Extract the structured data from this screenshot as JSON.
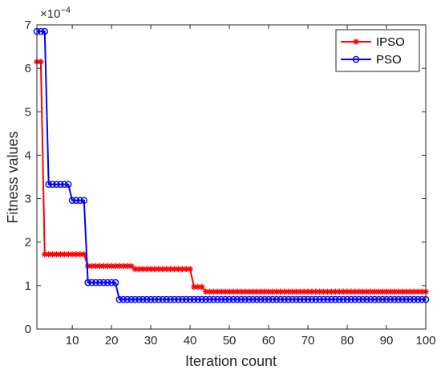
{
  "chart_data": {
    "type": "line",
    "xlabel": "Iteration count",
    "ylabel": "Fitness values",
    "y_exponent_label": "×10",
    "y_exponent_power": "−4",
    "xlim": [
      1,
      100
    ],
    "ylim": [
      0,
      7
    ],
    "x_ticks": [
      10,
      20,
      30,
      40,
      50,
      60,
      70,
      80,
      90,
      100
    ],
    "y_ticks": [
      0,
      1,
      2,
      3,
      4,
      5,
      6,
      7
    ],
    "grid": false,
    "legend_position": "top-right",
    "x": [
      1,
      2,
      3,
      4,
      5,
      6,
      7,
      8,
      9,
      10,
      11,
      12,
      13,
      14,
      15,
      16,
      17,
      18,
      19,
      20,
      21,
      22,
      23,
      24,
      25,
      26,
      27,
      28,
      29,
      30,
      31,
      32,
      33,
      34,
      35,
      36,
      37,
      38,
      39,
      40,
      41,
      42,
      43,
      44,
      45,
      46,
      47,
      48,
      49,
      50,
      51,
      52,
      53,
      54,
      55,
      56,
      57,
      58,
      59,
      60,
      61,
      62,
      63,
      64,
      65,
      66,
      67,
      68,
      69,
      70,
      71,
      72,
      73,
      74,
      75,
      76,
      77,
      78,
      79,
      80,
      81,
      82,
      83,
      84,
      85,
      86,
      87,
      88,
      89,
      90,
      91,
      92,
      93,
      94,
      95,
      96,
      97,
      98,
      99,
      100
    ],
    "series": [
      {
        "name": "IPSO",
        "color": "#ff0000",
        "marker": "star",
        "values": [
          6.15,
          6.15,
          1.72,
          1.72,
          1.72,
          1.72,
          1.72,
          1.72,
          1.72,
          1.72,
          1.72,
          1.72,
          1.72,
          1.45,
          1.45,
          1.45,
          1.45,
          1.45,
          1.45,
          1.45,
          1.45,
          1.45,
          1.45,
          1.45,
          1.45,
          1.38,
          1.38,
          1.38,
          1.38,
          1.38,
          1.38,
          1.38,
          1.38,
          1.38,
          1.38,
          1.38,
          1.38,
          1.38,
          1.38,
          1.38,
          0.97,
          0.97,
          0.97,
          0.86,
          0.86,
          0.86,
          0.86,
          0.86,
          0.86,
          0.86,
          0.86,
          0.86,
          0.86,
          0.86,
          0.86,
          0.86,
          0.86,
          0.86,
          0.86,
          0.86,
          0.86,
          0.86,
          0.86,
          0.86,
          0.86,
          0.86,
          0.86,
          0.86,
          0.86,
          0.86,
          0.86,
          0.86,
          0.86,
          0.86,
          0.86,
          0.86,
          0.86,
          0.86,
          0.86,
          0.86,
          0.86,
          0.86,
          0.86,
          0.86,
          0.86,
          0.86,
          0.86,
          0.86,
          0.86,
          0.86,
          0.86,
          0.86,
          0.86,
          0.86,
          0.86,
          0.86,
          0.86,
          0.86,
          0.86,
          0.86
        ]
      },
      {
        "name": "PSO",
        "color": "#0000ff",
        "marker": "circle",
        "values": [
          6.85,
          6.85,
          6.85,
          3.33,
          3.33,
          3.33,
          3.33,
          3.33,
          3.33,
          2.96,
          2.96,
          2.96,
          2.96,
          1.07,
          1.07,
          1.07,
          1.07,
          1.07,
          1.07,
          1.07,
          1.07,
          0.68,
          0.68,
          0.68,
          0.68,
          0.68,
          0.68,
          0.68,
          0.68,
          0.68,
          0.68,
          0.68,
          0.68,
          0.68,
          0.68,
          0.68,
          0.68,
          0.68,
          0.68,
          0.68,
          0.68,
          0.68,
          0.68,
          0.68,
          0.68,
          0.68,
          0.68,
          0.68,
          0.68,
          0.68,
          0.68,
          0.68,
          0.68,
          0.68,
          0.68,
          0.68,
          0.68,
          0.68,
          0.68,
          0.68,
          0.68,
          0.68,
          0.68,
          0.68,
          0.68,
          0.68,
          0.68,
          0.68,
          0.68,
          0.68,
          0.68,
          0.68,
          0.68,
          0.68,
          0.68,
          0.68,
          0.68,
          0.68,
          0.68,
          0.68,
          0.68,
          0.68,
          0.68,
          0.68,
          0.68,
          0.68,
          0.68,
          0.68,
          0.68,
          0.68,
          0.68,
          0.68,
          0.68,
          0.68,
          0.68,
          0.68,
          0.68,
          0.68,
          0.68,
          0.68
        ]
      }
    ]
  }
}
